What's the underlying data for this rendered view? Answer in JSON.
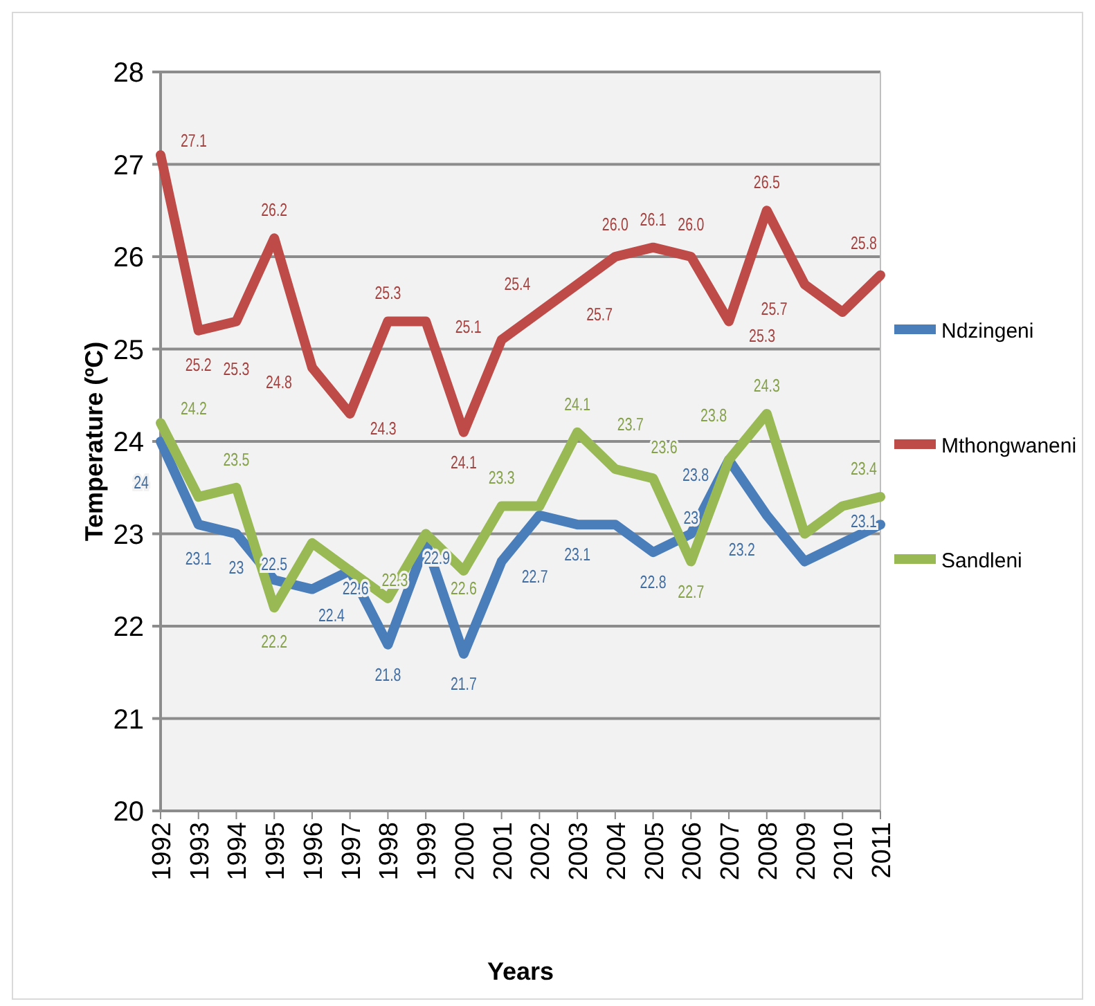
{
  "chart_data": {
    "type": "line",
    "xlabel": "Years",
    "ylabel": "Temperature (ºC)",
    "categories": [
      "1992",
      "1993",
      "1994",
      "1995",
      "1996",
      "1997",
      "1998",
      "1999",
      "2000",
      "2001",
      "2002",
      "2003",
      "2004",
      "2005",
      "2006",
      "2007",
      "2008",
      "2009",
      "2010",
      "2011"
    ],
    "ylim": [
      20,
      28
    ],
    "yticks": [
      20,
      21,
      22,
      23,
      24,
      25,
      26,
      27,
      28
    ],
    "grid": "y",
    "legend": "right",
    "marker": "none",
    "line_style": "solid",
    "series": [
      {
        "name": "Ndzingeni",
        "color": "#4a7ebb",
        "values": [
          24.0,
          23.1,
          23.0,
          22.5,
          22.4,
          22.6,
          21.8,
          22.9,
          21.7,
          22.7,
          23.2,
          23.1,
          23.1,
          22.8,
          23.0,
          23.8,
          23.2,
          22.7,
          22.9,
          23.1
        ],
        "value_labels": [
          "24",
          "23.1",
          "23",
          "22.5",
          "22.4",
          "22.6",
          "21.8",
          "22.9",
          "21.7",
          "22.7",
          null,
          "23.1",
          null,
          "22.8",
          "23",
          "23.8",
          "23.2",
          null,
          null,
          "23.1"
        ]
      },
      {
        "name": "Mthongwaneni",
        "color": "#be4b48",
        "values": [
          27.1,
          25.2,
          25.3,
          26.2,
          24.8,
          24.3,
          25.3,
          25.3,
          24.1,
          25.1,
          25.4,
          25.7,
          26.0,
          26.1,
          26.0,
          25.3,
          26.5,
          25.7,
          25.4,
          25.8
        ],
        "value_labels": [
          "27.1",
          "25.2",
          "25.3",
          "26.2",
          "24.8",
          "24.3",
          "25.3",
          null,
          "24.1",
          "25.1",
          "25.4",
          "25.7",
          "26.0",
          "26.1",
          "26.0",
          "25.3",
          "26.5",
          "25.7",
          null,
          "25.8"
        ]
      },
      {
        "name": "Sandleni",
        "color": "#98b954",
        "values": [
          24.2,
          23.4,
          23.5,
          22.2,
          22.9,
          22.6,
          22.3,
          23.0,
          22.6,
          23.3,
          23.3,
          24.1,
          23.7,
          23.6,
          22.7,
          23.8,
          24.3,
          23.0,
          23.3,
          23.4
        ],
        "value_labels": [
          "24.2",
          null,
          "23.5",
          "22.2",
          null,
          null,
          "22.3",
          null,
          "22.6",
          "23.3",
          null,
          "24.1",
          "23.7",
          "23.6",
          "22.7",
          "23.8",
          "24.3",
          null,
          null,
          "23.4"
        ]
      }
    ]
  }
}
